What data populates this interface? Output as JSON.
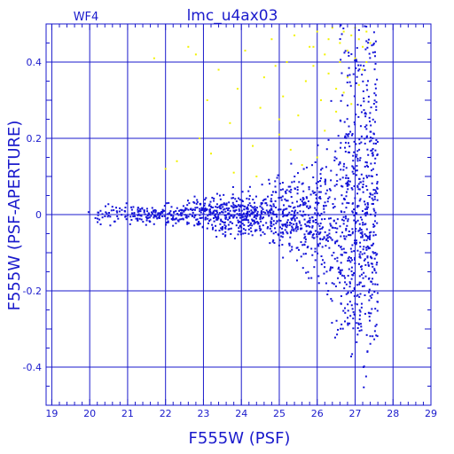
{
  "chart_data": {
    "type": "scatter",
    "title": "lmc_u4ax03",
    "chip_label": "WF4",
    "xlabel": "F555W (PSF)",
    "ylabel": "F555W (PSF-APERTURE)",
    "xlim": [
      18.85,
      29.0
    ],
    "ylim": [
      -0.5,
      0.5
    ],
    "xticks": [
      "19",
      "20",
      "21",
      "22",
      "23",
      "24",
      "25",
      "26",
      "27",
      "28",
      "29"
    ],
    "yticks": [
      "-0.4",
      "-0.2",
      "0",
      "0.2",
      "0.4"
    ],
    "grid": true,
    "colors": {
      "axis": "#1a1acc",
      "grid": "#1a1acc",
      "primary": "#1414d8",
      "secondary": "#f2f200"
    },
    "series": [
      {
        "color": "#f2f200",
        "x": [
          21.7,
          22.0,
          22.3,
          22.6,
          22.9,
          23.1,
          23.4,
          23.7,
          23.9,
          24.1,
          24.3,
          24.5,
          24.6,
          24.8,
          25.0,
          25.1,
          25.2,
          25.4,
          25.5,
          25.7,
          25.8,
          25.9,
          26.0,
          26.1,
          26.2,
          26.3,
          26.3,
          26.4,
          26.5,
          26.6,
          26.6,
          26.7,
          26.8,
          26.8,
          26.9,
          27.0,
          27.0,
          27.1,
          27.2,
          27.2,
          27.3,
          27.4,
          23.2,
          23.8,
          24.4,
          25.0,
          25.6,
          26.2,
          26.9,
          22.8,
          24.9,
          25.3,
          26.5,
          27.1,
          26.0,
          25.9,
          26.7,
          27.3
        ],
        "y": [
          0.41,
          0.12,
          0.14,
          0.44,
          0.2,
          0.3,
          0.38,
          0.24,
          0.33,
          0.43,
          0.18,
          0.28,
          0.36,
          0.46,
          0.21,
          0.31,
          0.4,
          0.47,
          0.26,
          0.35,
          0.44,
          0.39,
          0.48,
          0.3,
          0.42,
          0.46,
          0.37,
          0.49,
          0.33,
          0.45,
          0.4,
          0.48,
          0.36,
          0.43,
          0.47,
          0.49,
          0.41,
          0.46,
          0.44,
          0.38,
          0.48,
          0.45,
          0.16,
          0.11,
          0.1,
          0.25,
          0.13,
          0.22,
          0.29,
          0.42,
          0.39,
          0.17,
          0.27,
          0.34,
          0.15,
          0.44,
          0.32,
          0.4
        ]
      }
    ]
  }
}
